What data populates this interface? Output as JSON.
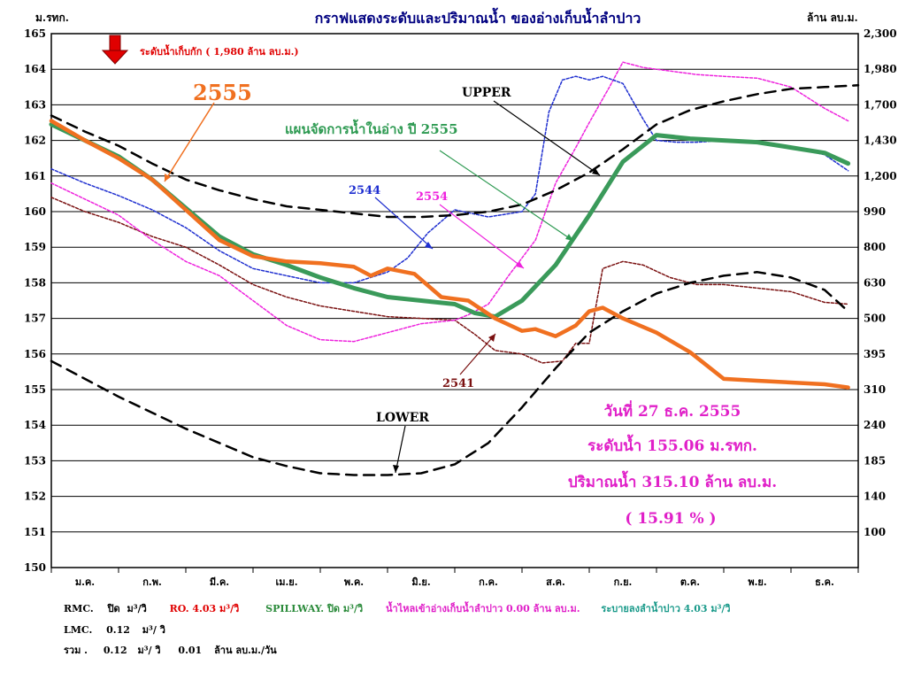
{
  "title": "กราฟแสดงระดับและปริมาณน้ำ ของอ่างเก็บน้ำลำปาว",
  "left_unit": "ม.รทก.",
  "right_unit": "ล้าน ลบ.ม.",
  "capacity_label": "ระดับน้ำเก็บกัก ( 1,980 ล้าน ลบ.ม.)",
  "colors": {
    "2555": "#f07020",
    "plan": "#3a9a5a",
    "2544": "#1f2fd0",
    "2554": "#ee22dd",
    "2541": "#7a1010",
    "rule": "#000000",
    "title": "#000080",
    "info": "#e020c8",
    "red": "#e00000"
  },
  "chart_data": {
    "type": "line",
    "title": "กราฟแสดงระดับและปริมาณน้ำ ของอ่างเก็บน้ำลำปาว",
    "ylabel": "ม.รทก.",
    "y2label": "ล้าน ลบ.ม.",
    "ylim": [
      150,
      165
    ],
    "yticks": [
      150,
      151,
      152,
      153,
      154,
      155,
      156,
      157,
      158,
      159,
      160,
      161,
      162,
      163,
      164,
      165
    ],
    "xlim": [
      0,
      12
    ],
    "categories": [
      "ม.ค.",
      "ก.พ.",
      "มี.ค.",
      "เม.ย.",
      "พ.ค.",
      "มิ.ย.",
      "ก.ค.",
      "ส.ค.",
      "ก.ย.",
      "ต.ค.",
      "พ.ย.",
      "ธ.ค."
    ],
    "right_axis_labels": [
      {
        "level": 151,
        "text": "100"
      },
      {
        "level": 152,
        "text": "140"
      },
      {
        "level": 153,
        "text": "185"
      },
      {
        "level": 154,
        "text": "240"
      },
      {
        "level": 155,
        "text": "310"
      },
      {
        "level": 156,
        "text": "395"
      },
      {
        "level": 157,
        "text": "500"
      },
      {
        "level": 158,
        "text": "630"
      },
      {
        "level": 159,
        "text": "800"
      },
      {
        "level": 160,
        "text": "990"
      },
      {
        "level": 161,
        "text": "1,200"
      },
      {
        "level": 162,
        "text": "1,430"
      },
      {
        "level": 163,
        "text": "1,700"
      },
      {
        "level": 164,
        "text": "1,980"
      },
      {
        "level": 165,
        "text": "2,300"
      }
    ],
    "grid": true,
    "series": [
      {
        "name": "UPPER",
        "key": "upper",
        "style": "dashed",
        "width": 2.5,
        "x": [
          0,
          0.5,
          1,
          1.5,
          2,
          2.5,
          3,
          3.5,
          4,
          4.5,
          5,
          5.5,
          6,
          6.5,
          7,
          7.5,
          8,
          8.5,
          9,
          9.5,
          10,
          10.5,
          11,
          11.5,
          12
        ],
        "y": [
          162.7,
          162.25,
          161.85,
          161.35,
          160.9,
          160.6,
          160.35,
          160.15,
          160.05,
          159.95,
          159.85,
          159.85,
          159.9,
          160.0,
          160.2,
          160.6,
          161.1,
          161.75,
          162.45,
          162.85,
          163.1,
          163.3,
          163.45,
          163.5,
          163.55
        ]
      },
      {
        "name": "LOWER",
        "key": "lower",
        "style": "dashed",
        "width": 2.5,
        "x": [
          0,
          0.5,
          1,
          1.5,
          2,
          2.5,
          3,
          3.5,
          4,
          4.5,
          5,
          5.5,
          6,
          6.5,
          7,
          7.5,
          8,
          8.5,
          9,
          9.5,
          10,
          10.5,
          11,
          11.5,
          11.85
        ],
        "y": [
          155.8,
          155.3,
          154.8,
          154.35,
          153.9,
          153.5,
          153.1,
          152.85,
          152.65,
          152.6,
          152.6,
          152.65,
          152.9,
          153.5,
          154.5,
          155.6,
          156.6,
          157.2,
          157.7,
          158.0,
          158.2,
          158.3,
          158.15,
          157.8,
          157.2
        ]
      },
      {
        "name": "แผนจัดการน้ำในอ่าง ปี 2555",
        "key": "plan",
        "style": "solid",
        "width": 5,
        "x": [
          0,
          0.5,
          1,
          1.5,
          2,
          2.5,
          3,
          3.5,
          4,
          4.5,
          5,
          5.5,
          6,
          6.3,
          6.6,
          7,
          7.5,
          8,
          8.5,
          9,
          9.5,
          10,
          10.5,
          11,
          11.5,
          11.85
        ],
        "y": [
          162.45,
          162.0,
          161.55,
          160.9,
          160.1,
          159.3,
          158.8,
          158.5,
          158.15,
          157.85,
          157.6,
          157.5,
          157.4,
          157.15,
          157.05,
          157.5,
          158.5,
          159.9,
          161.4,
          162.15,
          162.05,
          162.0,
          161.95,
          161.8,
          161.65,
          161.35
        ]
      },
      {
        "name": "2555",
        "key": "s2555",
        "style": "solid",
        "width": 4.5,
        "x": [
          0,
          0.5,
          1,
          1.5,
          2,
          2.5,
          3,
          3.5,
          4,
          4.5,
          4.75,
          5,
          5.4,
          5.8,
          6.2,
          6.6,
          7,
          7.2,
          7.5,
          7.8,
          8,
          8.2,
          8.5,
          9,
          9.5,
          10,
          10.5,
          11,
          11.5,
          11.85
        ],
        "y": [
          162.55,
          162.0,
          161.5,
          160.9,
          160.05,
          159.2,
          158.75,
          158.6,
          158.55,
          158.45,
          158.2,
          158.4,
          158.25,
          157.6,
          157.5,
          157.0,
          156.65,
          156.7,
          156.5,
          156.8,
          157.2,
          157.3,
          157.0,
          156.6,
          156.05,
          155.3,
          155.25,
          155.2,
          155.15,
          155.06
        ]
      },
      {
        "name": "2544",
        "key": "s2544",
        "style": "dotted",
        "width": 1.5,
        "x": [
          0,
          0.5,
          1,
          1.5,
          2,
          2.5,
          3,
          3.5,
          4,
          4.5,
          5,
          5.3,
          5.6,
          6.0,
          6.5,
          7,
          7.2,
          7.4,
          7.6,
          7.8,
          8,
          8.2,
          8.5,
          8.8,
          9,
          9.3,
          9.6,
          10,
          10.5,
          11,
          11.5,
          11.85
        ],
        "y": [
          161.2,
          160.8,
          160.45,
          160.05,
          159.55,
          158.9,
          158.4,
          158.2,
          158.0,
          158.0,
          158.3,
          158.7,
          159.4,
          160.05,
          159.85,
          160.0,
          160.5,
          162.8,
          163.7,
          163.8,
          163.7,
          163.8,
          163.6,
          162.6,
          162.0,
          161.95,
          161.95,
          162.0,
          161.95,
          161.8,
          161.6,
          161.15
        ]
      },
      {
        "name": "2554",
        "key": "s2554",
        "style": "dotted",
        "width": 1.5,
        "x": [
          0,
          0.5,
          1,
          1.5,
          2,
          2.5,
          3,
          3.5,
          4,
          4.5,
          5,
          5.5,
          6,
          6.2,
          6.5,
          6.8,
          7.2,
          7.5,
          7.8,
          8,
          8.3,
          8.5,
          8.8,
          9.2,
          9.6,
          10,
          10.5,
          11,
          11.5,
          11.85
        ],
        "y": [
          160.8,
          160.35,
          159.9,
          159.2,
          158.6,
          158.2,
          157.5,
          156.8,
          156.4,
          156.35,
          156.6,
          156.85,
          156.95,
          157.1,
          157.4,
          158.2,
          159.2,
          160.8,
          161.8,
          162.5,
          163.5,
          164.2,
          164.05,
          163.95,
          163.85,
          163.8,
          163.75,
          163.5,
          162.9,
          162.55
        ]
      },
      {
        "name": "2541",
        "key": "s2541",
        "style": "dotted",
        "width": 1.5,
        "x": [
          0,
          0.5,
          1,
          1.5,
          2,
          2.5,
          3,
          3.5,
          4,
          4.5,
          5,
          5.5,
          6,
          6.3,
          6.6,
          7,
          7.3,
          7.6,
          7.8,
          8,
          8.2,
          8.5,
          8.8,
          9.2,
          9.6,
          10,
          10.5,
          11,
          11.5,
          11.85
        ],
        "y": [
          160.4,
          160.0,
          159.7,
          159.3,
          159.0,
          158.5,
          157.95,
          157.6,
          157.35,
          157.2,
          157.05,
          157.0,
          156.95,
          156.55,
          156.1,
          156.0,
          155.75,
          155.8,
          156.3,
          156.3,
          158.4,
          158.6,
          158.5,
          158.15,
          157.95,
          157.95,
          157.85,
          157.75,
          157.45,
          157.4
        ]
      }
    ]
  },
  "labels": {
    "year_2555": "2555",
    "upper": "UPPER",
    "plan": "แผนจัดการน้ำในอ่าง ปี 2555",
    "year_2544": "2544",
    "year_2554": "2554",
    "year_2541": "2541",
    "lower": "LOWER"
  },
  "info": {
    "date": "วันที่   27   ธ.ค.  2555",
    "level": "ระดับน้ำ   155.06   ม.รทก.",
    "volume": "ปริมาณน้ำ   315.10  ล้าน ลบ.ม.",
    "percent": "(  15.91 % )"
  },
  "footer": {
    "row1": {
      "rmc": "RMC.",
      "rmc_val": "ปิด",
      "rmc_unit": "ม³/วิ",
      "ro": "RO.  4.03  ม³/วิ",
      "spillway": "SPILLWAY.  ปิด  ม³/วิ",
      "inflow": "น้ำไหลเข้าอ่างเก็บน้ำลำปาว     0.00   ล้าน ลบ.ม.",
      "release": "ระบายลงลำน้ำปาว   4.03   ม³/วิ"
    },
    "row2": {
      "lmc": "LMC.",
      "lmc_val": "0.12",
      "lmc_unit": "ม³/ วิ"
    },
    "row3": {
      "total": "รวม .",
      "total_val": "0.12",
      "total_unit": "ม³/ วิ",
      "day_val": "0.01",
      "day_unit": "ล้าน ลบ.ม./วัน"
    }
  }
}
